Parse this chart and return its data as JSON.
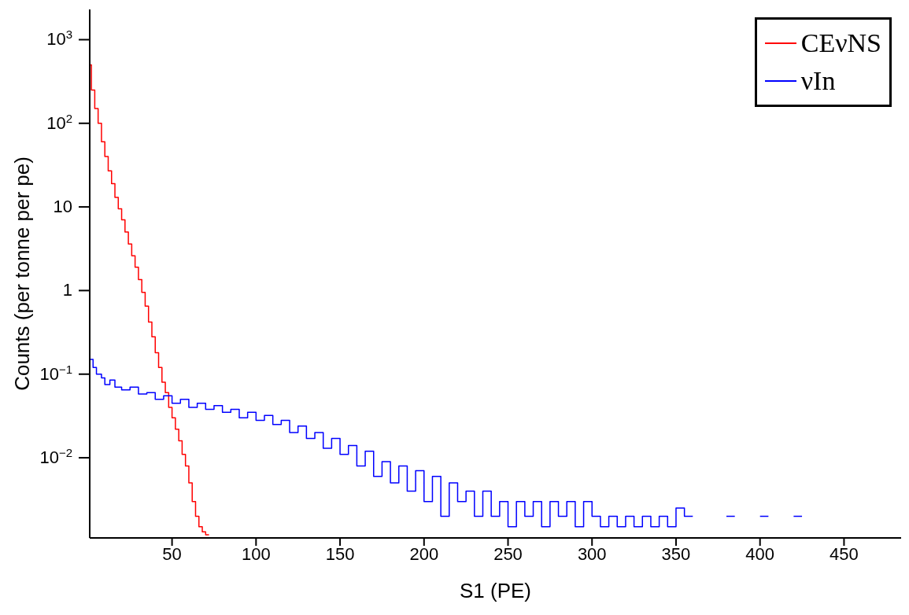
{
  "chart_data": {
    "type": "step",
    "xlabel": "S1 (PE)",
    "ylabel": "Counts (per tonne per pe)",
    "log": "y",
    "xlim": [
      1,
      484
    ],
    "xticks": [
      50,
      100,
      150,
      200,
      250,
      300,
      350,
      400,
      450
    ],
    "ylim": [
      0.0011,
      2300
    ],
    "yticks": [
      {
        "value": 0.01,
        "label": "10$^{−2}$"
      },
      {
        "value": 0.1,
        "label": "10$^{−1}$"
      },
      1,
      10,
      {
        "value": 100,
        "label": "10$^{2}$"
      },
      {
        "value": 1000,
        "label": "10$^{3}$"
      }
    ],
    "grid": false,
    "legend": "top right",
    "marker": "none",
    "series": [
      {
        "name": "CEνNS",
        "color": "#ff0000",
        "x": [
          1,
          2,
          4,
          6,
          8,
          10,
          12,
          14,
          16,
          18,
          20,
          22,
          24,
          26,
          28,
          30,
          32,
          34,
          36,
          38,
          40,
          42,
          44,
          46,
          48,
          50,
          52,
          54,
          56,
          58,
          60,
          62,
          64,
          66,
          68,
          70,
          72
        ],
        "values": [
          500,
          250,
          150,
          100,
          60,
          40,
          27,
          19,
          13,
          9.5,
          7,
          5,
          3.6,
          2.6,
          1.9,
          1.35,
          0.95,
          0.65,
          0.42,
          0.28,
          0.18,
          0.12,
          0.08,
          0.06,
          0.04,
          0.03,
          0.022,
          0.016,
          0.011,
          0.008,
          0.005,
          0.003,
          0.002,
          0.0015,
          0.0013,
          0.0012,
          0.0012
        ]
      },
      {
        "name": "νIn",
        "color": "#0000ff",
        "x": [
          1,
          3,
          5,
          8,
          10,
          13,
          16,
          20,
          25,
          30,
          35,
          40,
          45,
          50,
          55,
          60,
          65,
          70,
          75,
          80,
          85,
          90,
          95,
          100,
          105,
          110,
          115,
          120,
          125,
          130,
          135,
          140,
          145,
          150,
          155,
          160,
          165,
          170,
          175,
          180,
          185,
          190,
          195,
          200,
          205,
          210,
          215,
          220,
          225,
          230,
          235,
          240,
          245,
          250,
          255,
          260,
          265,
          270,
          275,
          280,
          285,
          290,
          295,
          300,
          305,
          310,
          315,
          320,
          325,
          330,
          335,
          340,
          345,
          350,
          355,
          360,
          365,
          380,
          385,
          386,
          400,
          405,
          406,
          420,
          425
        ],
        "values": [
          0.15,
          0.12,
          0.1,
          0.09,
          0.075,
          0.085,
          0.07,
          0.065,
          0.07,
          0.058,
          0.06,
          0.05,
          0.055,
          0.045,
          0.05,
          0.04,
          0.045,
          0.038,
          0.042,
          0.035,
          0.038,
          0.03,
          0.035,
          0.028,
          0.032,
          0.025,
          0.028,
          0.02,
          0.024,
          0.017,
          0.02,
          0.013,
          0.017,
          0.011,
          0.014,
          0.008,
          0.012,
          0.006,
          0.009,
          0.005,
          0.008,
          0.004,
          0.007,
          0.003,
          0.006,
          0.002,
          0.005,
          0.003,
          0.004,
          0.002,
          0.004,
          0.002,
          0.003,
          0.0015,
          0.003,
          0.002,
          0.003,
          0.0015,
          0.003,
          0.002,
          0.003,
          0.0015,
          0.003,
          0.002,
          0.0015,
          0.002,
          0.0015,
          0.002,
          0.0015,
          0.002,
          0.0015,
          0.002,
          0.0015,
          0.0025,
          0.002,
          0.002,
          null,
          0.002,
          0.002,
          null,
          0.002,
          0.002,
          null,
          0.002,
          0.002
        ]
      }
    ]
  }
}
